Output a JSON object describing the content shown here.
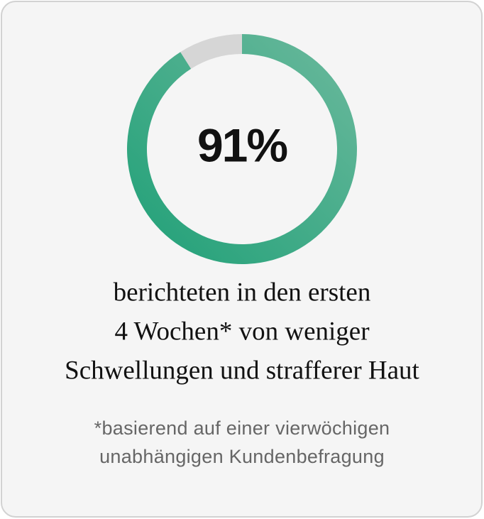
{
  "chart_data": {
    "type": "donut",
    "values": [
      91,
      9
    ],
    "value_labels": [
      "91%",
      null
    ],
    "colors": [
      "#1fa077",
      "#d6d6d6"
    ],
    "gradient_to": "#6cb99d",
    "caption": [
      "berichteten in den ersten",
      "4 Wochen* von weniger",
      "Schwellungen und strafferer Haut"
    ],
    "footnote": [
      "*basierend auf einer vierwöchigen",
      "unabhängigen Kundenbefragung"
    ]
  }
}
